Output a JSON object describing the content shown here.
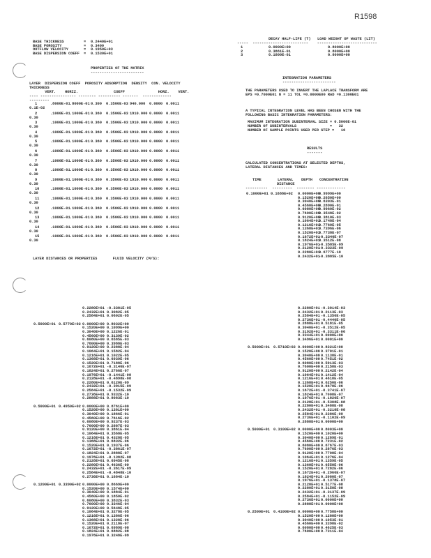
{
  "ref_number": "R1598",
  "base": [
    {
      "label": "BASE THICKNESS",
      "value": "0.2440E+01"
    },
    {
      "label": "BASE POROSITY",
      "value": "0.3400"
    },
    {
      "label": "OUTFLOW VELOCITY",
      "value": "0.1950E+03"
    },
    {
      "label": "BASE DISPERSION COEFF",
      "value": "0.1530E+01"
    }
  ],
  "decay_table": {
    "headers": [
      "DECAY HALF-LIFE (T)",
      "LOAD WEIGHT OF WASTE (LIT)"
    ],
    "rows": [
      [
        "1",
        "0.0000E+00",
        "0.8000E+00"
      ],
      [
        "2",
        "0.3861E-01",
        "0.8000E+00"
      ],
      [
        "3",
        "0.1800E-01",
        "0.8000E+00"
      ]
    ]
  },
  "matrix": {
    "title": "PROPERTIES OF THE MATRIX",
    "header1": "LAYER  DISPERSION COEFF  POROSITY ADSORPTION  DENSITY  CON. VELOCITY",
    "header2": "THICKNESS",
    "header3": "       VERT.    HORIZ.                COEFF               HORZ.    VERT.",
    "layers": [
      [
        "1",
        ".8000E-01",
        ".8000E-01",
        "0.300",
        "0.3500E-03",
        "940.000",
        "0.0000",
        "0.0011",
        "0.1E-02"
      ],
      [
        "2",
        ".1000E-01",
        ".1000E-01",
        "0.360",
        "0.3500E-03",
        "1910.000",
        "0.0000",
        "0.0011",
        "0.30"
      ],
      [
        "3",
        ".1000E-01",
        ".1000E-01",
        "0.360",
        "0.3500E-03",
        "1910.000",
        "0.0000",
        "0.0011",
        "0.30"
      ],
      [
        "4",
        ".1000E-01",
        ".1000E-01",
        "0.360",
        "0.3500E-03",
        "1910.000",
        "0.0000",
        "0.0011",
        "0.30"
      ],
      [
        "5",
        ".1000E-01",
        ".1000E-01",
        "0.360",
        "0.3500E-03",
        "1910.000",
        "0.0000",
        "0.0011",
        "0.30"
      ],
      [
        "6",
        ".1000E-01",
        ".1000E-01",
        "0.360",
        "0.3500E-03",
        "1910.000",
        "0.0000",
        "0.0011",
        "0.30"
      ],
      [
        "7",
        ".1000E-01",
        ".1000E-01",
        "0.360",
        "0.3500E-03",
        "1910.000",
        "0.0000",
        "0.0011",
        "0.30"
      ],
      [
        "8",
        ".1000E-01",
        ".1000E-01",
        "0.360",
        "0.3500E-03",
        "1910.000",
        "0.0000",
        "0.0011",
        "0.30"
      ],
      [
        "9",
        ".1000E-01",
        ".1000E-01",
        "0.360",
        "0.3500E-03",
        "1910.000",
        "0.0000",
        "0.0011",
        "0.30"
      ],
      [
        "10",
        ".1000E-01",
        ".1000E-01",
        "0.360",
        "0.3500E-03",
        "1910.000",
        "0.0000",
        "0.0011",
        "0.30"
      ],
      [
        "11",
        ".1000E-01",
        ".1000E-01",
        "0.360",
        "0.3500E-03",
        "1910.000",
        "0.0000",
        "0.0011",
        "0.30"
      ],
      [
        "12",
        ".1000E-01",
        ".1000E-01",
        "0.360",
        "0.3500E-03",
        "1910.000",
        "0.0000",
        "0.0011",
        "0.30"
      ],
      [
        "13",
        ".1000E-01",
        ".1000E-01",
        "0.360",
        "0.3500E-03",
        "1910.000",
        "0.0000",
        "0.0011",
        "0.30"
      ],
      [
        "14",
        ".1000E-01",
        ".1000E-01",
        "0.360",
        "0.3500E-03",
        "1910.000",
        "0.0000",
        "0.0011",
        "0.30"
      ],
      [
        "15",
        ".1000E-01",
        ".1000E-01",
        "0.360",
        "0.3500E-03",
        "1910.000",
        "0.0000",
        "0.0011",
        "0.30"
      ]
    ],
    "footer": "LAYER DISTANCES OR PROPERTIES       FLUID VELOCITY (M/S):"
  },
  "integration": {
    "title": "INTEGRATION PARAMETERS",
    "p1": [
      "THE PARAMETERS USED TO INVERT THE LAPLACE TRANSFORM ARE",
      "EPS =0.7000E01 N = 11 TOL =0.0000E00 RAD =0.1300E01"
    ],
    "p2": [
      "A TYPICAL INTEGRATION LEVEL HAS BEEN CHOSEN WITH THE",
      "FOLLOWING BASIC INTEGRATION PARAMETERS:"
    ],
    "params": [
      "MAXIMUM INTEGRATION SUBINTERVAL SIZE = 0.5000E-01",
      "NUMBER OF SUBINTERVALS               =   32",
      "NUMBER OF SAMPLE POINTS USED PER STEP =   16"
    ]
  },
  "results": {
    "title": "RESULTS",
    "intro": [
      "CALCULATED CONCENTRATIONS AT SELECTED DEPTHS,",
      "LATERAL DISTANCES AND TIMES:"
    ],
    "headers": {
      "time": "TIME",
      "lateral": "LATERAL",
      "lateral2": "DISTANCE",
      "depth": "DEPTH",
      "conc": "CONCENTRATION"
    },
    "blocks": [
      {
        "time": "0.1000E+01",
        "lateral": "0.1688E+02",
        "rows": [
          [
            "0.0000E+00",
            "0.9999E+00"
          ],
          [
            "0.1520E+00",
            "0.2650E+00"
          ],
          [
            "0.3040E+00",
            "0.6303E-01"
          ],
          [
            "0.4560E+00",
            "0.2890E-01"
          ],
          [
            "0.6080E+00",
            "0.9960E-02"
          ],
          [
            "0.7600E+00",
            "0.3548E-02"
          ],
          [
            "0.9120E+00",
            "0.3810E-03"
          ],
          [
            "0.1064E+01",
            "0.1748E-04"
          ],
          [
            "0.1216E+01",
            "0.7760E-05"
          ],
          [
            "0.1368E+01",
            "0.7396E-06"
          ],
          [
            "0.1520E+01",
            "0.7738E-07"
          ],
          [
            "0.1672E+01",
            "-0.3346E-07"
          ],
          [
            "0.1824E+01",
            "0.3512E-08"
          ],
          [
            "0.1976E+01",
            "-0.3585E-09"
          ],
          [
            "0.2128E+01",
            "-0.3322E-09"
          ],
          [
            "0.2280E+01",
            "0.6777E-10"
          ],
          [
            "0.2432E+01",
            "-0.3885E-10"
          ]
        ]
      }
    ]
  },
  "lower_left": [
    {
      "time": "",
      "lateral": "",
      "rows": [
        [
          "0.2280E+01",
          "-0.3381E-05"
        ],
        [
          "0.2432E+01",
          "0.3082E-05"
        ],
        [
          "0.2584E+01",
          "0.0602E-05"
        ]
      ]
    },
    {
      "time": "0.5000E+01",
      "lateral": "0.5770E+02",
      "rows": [
        [
          "0.0000E+00",
          "0.8032E+00"
        ],
        [
          "0.1520E+00",
          "0.1099E+00"
        ],
        [
          "0.3040E+00",
          "0.1226E-01"
        ],
        [
          "0.4560E+00",
          "0.3139E-02"
        ],
        [
          "0.6080E+00",
          "0.6585E-03"
        ],
        [
          "0.7600E+00",
          "0.3988E-03"
        ],
        [
          "0.9120E+00",
          "0.2388E-04"
        ],
        [
          "0.1064E+01",
          "0.1582E-04"
        ],
        [
          "0.1216E+01",
          "0.1022E-05"
        ],
        [
          "0.1368E+01",
          "0.6939E-06"
        ],
        [
          "0.1520E+01",
          "0.7188E-06"
        ],
        [
          "0.1672E+01",
          "-0.3146E-07"
        ],
        [
          "0.1824E+01",
          "0.2766E-07"
        ],
        [
          "0.1976E+01",
          "-0.1441E-08"
        ],
        [
          "0.2128E+01",
          "-0.4898E-08"
        ],
        [
          "0.2280E+01",
          "0.6120E-09"
        ],
        [
          "0.2432E+01",
          "-0.3915E-09"
        ],
        [
          "0.2584E+01",
          "-0.1532E-09"
        ],
        [
          "0.2736E+01",
          "0.9332E-10"
        ],
        [
          "0.2888E+01",
          "0.8083E-10"
        ]
      ]
    },
    {
      "time": "0.5000E+01",
      "lateral": "0.4950E+02",
      "rows": [
        [
          "0.0000E+00",
          "0.8761E+00"
        ],
        [
          "0.1520E+00",
          "0.1381E+00"
        ],
        [
          "0.3040E+00",
          "0.1866E-01"
        ],
        [
          "0.4560E+00",
          "0.7616E-02"
        ],
        [
          "0.6080E+00",
          "0.9237E-03"
        ],
        [
          "0.7600E+00",
          "0.2887E-03"
        ],
        [
          "0.9120E+00",
          "0.3861E-04"
        ],
        [
          "0.1064E+01",
          "0.3568E-05"
        ],
        [
          "0.1216E+01",
          "0.4328E-05"
        ],
        [
          "0.1368E+01",
          "0.6832E-06"
        ],
        [
          "0.1520E+01",
          "0.1937E-06"
        ],
        [
          "0.1672E+01",
          "-0.3861E-07"
        ],
        [
          "0.1824E+01",
          "0.2888E-07"
        ],
        [
          "0.1976E+01",
          "-0.1382E-08"
        ],
        [
          "0.2128E+01",
          "0.6945E-08"
        ],
        [
          "0.2280E+01",
          "0.4636E-09"
        ],
        [
          "0.2432E+01",
          "-0.3617E-09"
        ],
        [
          "0.2584E+01",
          "-0.4848E-10"
        ],
        [
          "0.2736E+01",
          "0.1684E-10"
        ]
      ]
    },
    {
      "time": "0.1200E+01",
      "lateral": "0.3390E+02",
      "rows": [
        [
          "0.0000E+00",
          "0.8669E+00"
        ],
        [
          "0.1520E+00",
          "0.1574E+00"
        ],
        [
          "0.3040E+00",
          "0.1884E-01"
        ],
        [
          "0.4560E+00",
          "0.1850E-02"
        ],
        [
          "0.6080E+00",
          "0.3832E-03"
        ],
        [
          "0.7600E+00",
          "0.3346E-04"
        ],
        [
          "0.9120E+00",
          "0.5648E-05"
        ],
        [
          "0.1064E+01",
          "0.3278E-05"
        ],
        [
          "0.1216E+01",
          "0.1386E-06"
        ],
        [
          "0.1368E+01",
          "0.1328E-06"
        ],
        [
          "0.1520E+01",
          "0.2118E-07"
        ],
        [
          "0.1672E+01",
          "0.6989E-08"
        ],
        [
          "0.1824E+01",
          "0.6882E-08"
        ],
        [
          "0.1976E+01",
          "0.3248E-09"
        ]
      ]
    }
  ],
  "lower_right": [
    {
      "time": "",
      "lateral": "",
      "rows": [
        [
          "0.2280E+01",
          "-0.3014E-03"
        ],
        [
          "0.2432E+01",
          "0.2113E-03"
        ],
        [
          "0.2584E+01",
          "-0.1356E-05"
        ],
        [
          "0.2736E+01",
          "-0.4440E-05"
        ],
        [
          "0.2888E+01",
          "0.5181E-05"
        ],
        [
          "0.3040E+01",
          "-0.3512E-05"
        ],
        [
          "0.3192E+01",
          "-0.3311E-06"
        ],
        [
          "0.3344E+01",
          "0.0000E+00"
        ],
        [
          "0.3496E+01",
          "0.0001E+00"
        ]
      ]
    },
    {
      "time": "0.5000E+01",
      "lateral": "0.5710E+02",
      "rows": [
        [
          "0.0000E+00",
          "0.8321E+00"
        ],
        [
          "0.1520E+00",
          "0.3701E-01"
        ],
        [
          "0.3040E+00",
          "0.1138E-01"
        ],
        [
          "0.4560E+00",
          "0.7451E-02"
        ],
        [
          "0.6080E+00",
          "0.5913E-03"
        ],
        [
          "0.7600E+00",
          "0.2158E-03"
        ],
        [
          "0.9120E+00",
          "0.2142E-04"
        ],
        [
          "0.1064E+01",
          "0.1412E-04"
        ],
        [
          "0.1216E+01",
          "0.4618E-05"
        ],
        [
          "0.1368E+01",
          "0.6250E-06"
        ],
        [
          "0.1520E+01",
          "0.6678E-06"
        ],
        [
          "0.1672E+01",
          "-0.3741E-07"
        ],
        [
          "0.1824E+01",
          "0.7008E-07"
        ],
        [
          "0.1976E+01",
          "-0.1826E-07"
        ],
        [
          "0.2128E+01",
          "-0.5308E-08"
        ],
        [
          "0.2280E+01",
          "0.3488E-08"
        ],
        [
          "0.2432E+01",
          "-0.3218E-08"
        ],
        [
          "0.2584E+01",
          "0.2386E-09"
        ],
        [
          "0.2736E+01",
          "-0.1102E-09"
        ],
        [
          "0.2888E+01",
          "0.0000E+00"
        ]
      ]
    },
    {
      "time": "0.5000E+01",
      "lateral": "0.3100E+02",
      "rows": [
        [
          "0.0000E+00",
          "0.8003E+00"
        ],
        [
          "0.1520E+00",
          "0.1020E+00"
        ],
        [
          "0.3040E+00",
          "0.1289E-01"
        ],
        [
          "0.4560E+00",
          "0.7231E-02"
        ],
        [
          "0.6080E+00",
          "0.6767E-03"
        ],
        [
          "0.7600E+00",
          "0.2876E-03"
        ],
        [
          "0.9120E+00",
          "0.7708E-04"
        ],
        [
          "0.1064E+01",
          "0.1276E-04"
        ],
        [
          "0.1216E+01",
          "0.1359E-05"
        ],
        [
          "0.1368E+01",
          "0.6558E-06"
        ],
        [
          "0.1520E+01",
          "0.7282E-06"
        ],
        [
          "0.1672E+01",
          "-0.2966E-07"
        ],
        [
          "0.1824E+01",
          "0.2080E-07"
        ],
        [
          "0.1976E+01",
          "-0.1378E-07"
        ],
        [
          "0.2128E+01",
          "0.5177E-08"
        ],
        [
          "0.2280E+01",
          "0.3158E-08"
        ],
        [
          "0.2432E+01",
          "-0.3137E-09"
        ],
        [
          "0.2584E+01",
          "-0.1152E-09"
        ],
        [
          "0.2736E+01",
          "0.0000E+00"
        ],
        [
          "0.2888E+01",
          "0.0000E+00"
        ]
      ]
    },
    {
      "time": "0.2500E+01",
      "lateral": "0.4100E+02",
      "rows": [
        [
          "0.0000E+00",
          "0.7758E+00"
        ],
        [
          "0.1520E+00",
          "0.1288E+00"
        ],
        [
          "0.3040E+00",
          "0.1053E-01"
        ],
        [
          "0.4560E+00",
          "0.3398E-02"
        ],
        [
          "0.6080E+00",
          "0.4625E-03"
        ],
        [
          "0.7600E+00",
          "0.7311E-04"
        ]
      ]
    }
  ]
}
